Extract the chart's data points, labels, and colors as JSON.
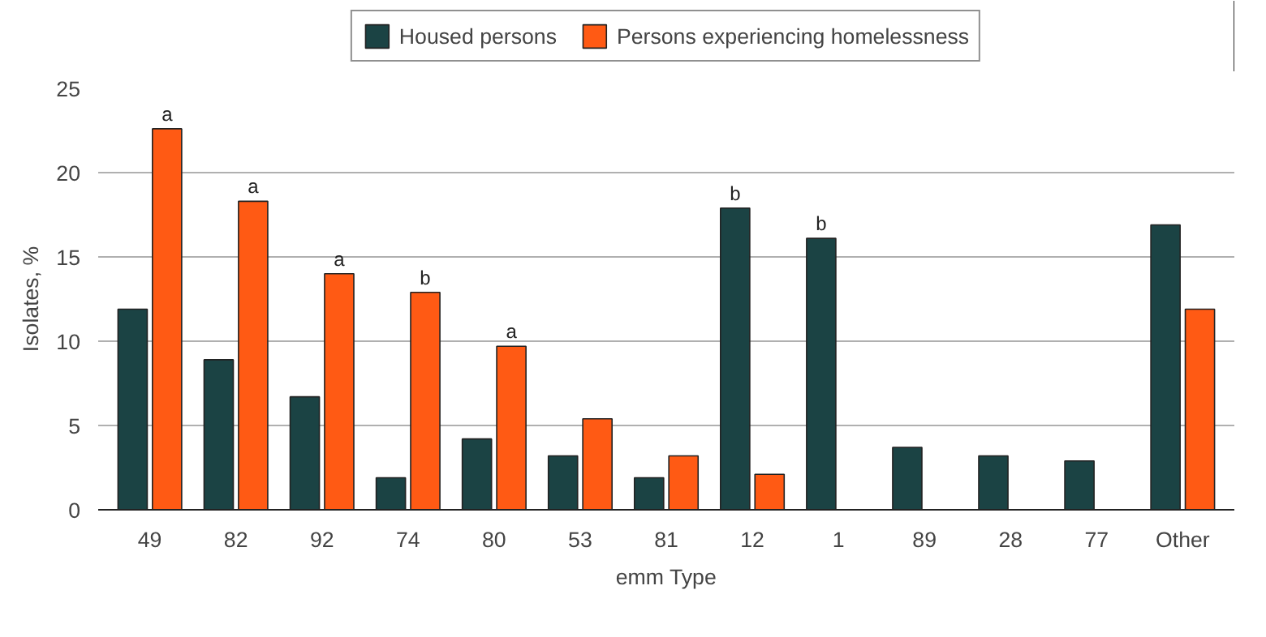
{
  "chart_data": {
    "type": "bar",
    "xlabel": "emm Type",
    "ylabel": "Isolates, %",
    "categories": [
      "49",
      "82",
      "92",
      "74",
      "80",
      "53",
      "81",
      "12",
      "1",
      "89",
      "28",
      "77",
      "Other"
    ],
    "series": [
      {
        "name": "Housed persons",
        "color": "#1b4344",
        "values": [
          11.9,
          8.9,
          6.7,
          1.9,
          4.2,
          3.2,
          1.9,
          17.9,
          16.1,
          3.7,
          3.2,
          2.9,
          16.9
        ]
      },
      {
        "name": "Persons experiencing homelessness",
        "color": "#ff5a14",
        "values": [
          22.6,
          18.3,
          14.0,
          12.9,
          9.7,
          5.4,
          3.2,
          2.1,
          null,
          null,
          null,
          null,
          11.9
        ]
      }
    ],
    "ylim": [
      0,
      25
    ],
    "yticks": [
      0,
      5,
      10,
      15,
      20,
      25
    ],
    "grid": "y",
    "legend": "top",
    "annotations": [
      {
        "text": "a",
        "x": "49",
        "y": 22.6
      },
      {
        "text": "a",
        "x": "82",
        "y": 18.3
      },
      {
        "text": "a",
        "x": "92",
        "y": 14.0
      },
      {
        "text": "b",
        "x": "74",
        "y": 12.9
      },
      {
        "text": "a",
        "x": "80",
        "y": 9.7
      },
      {
        "text": "b",
        "x": "12",
        "y": 17.9
      },
      {
        "text": "b",
        "x": "1",
        "y": 16.1
      }
    ]
  }
}
